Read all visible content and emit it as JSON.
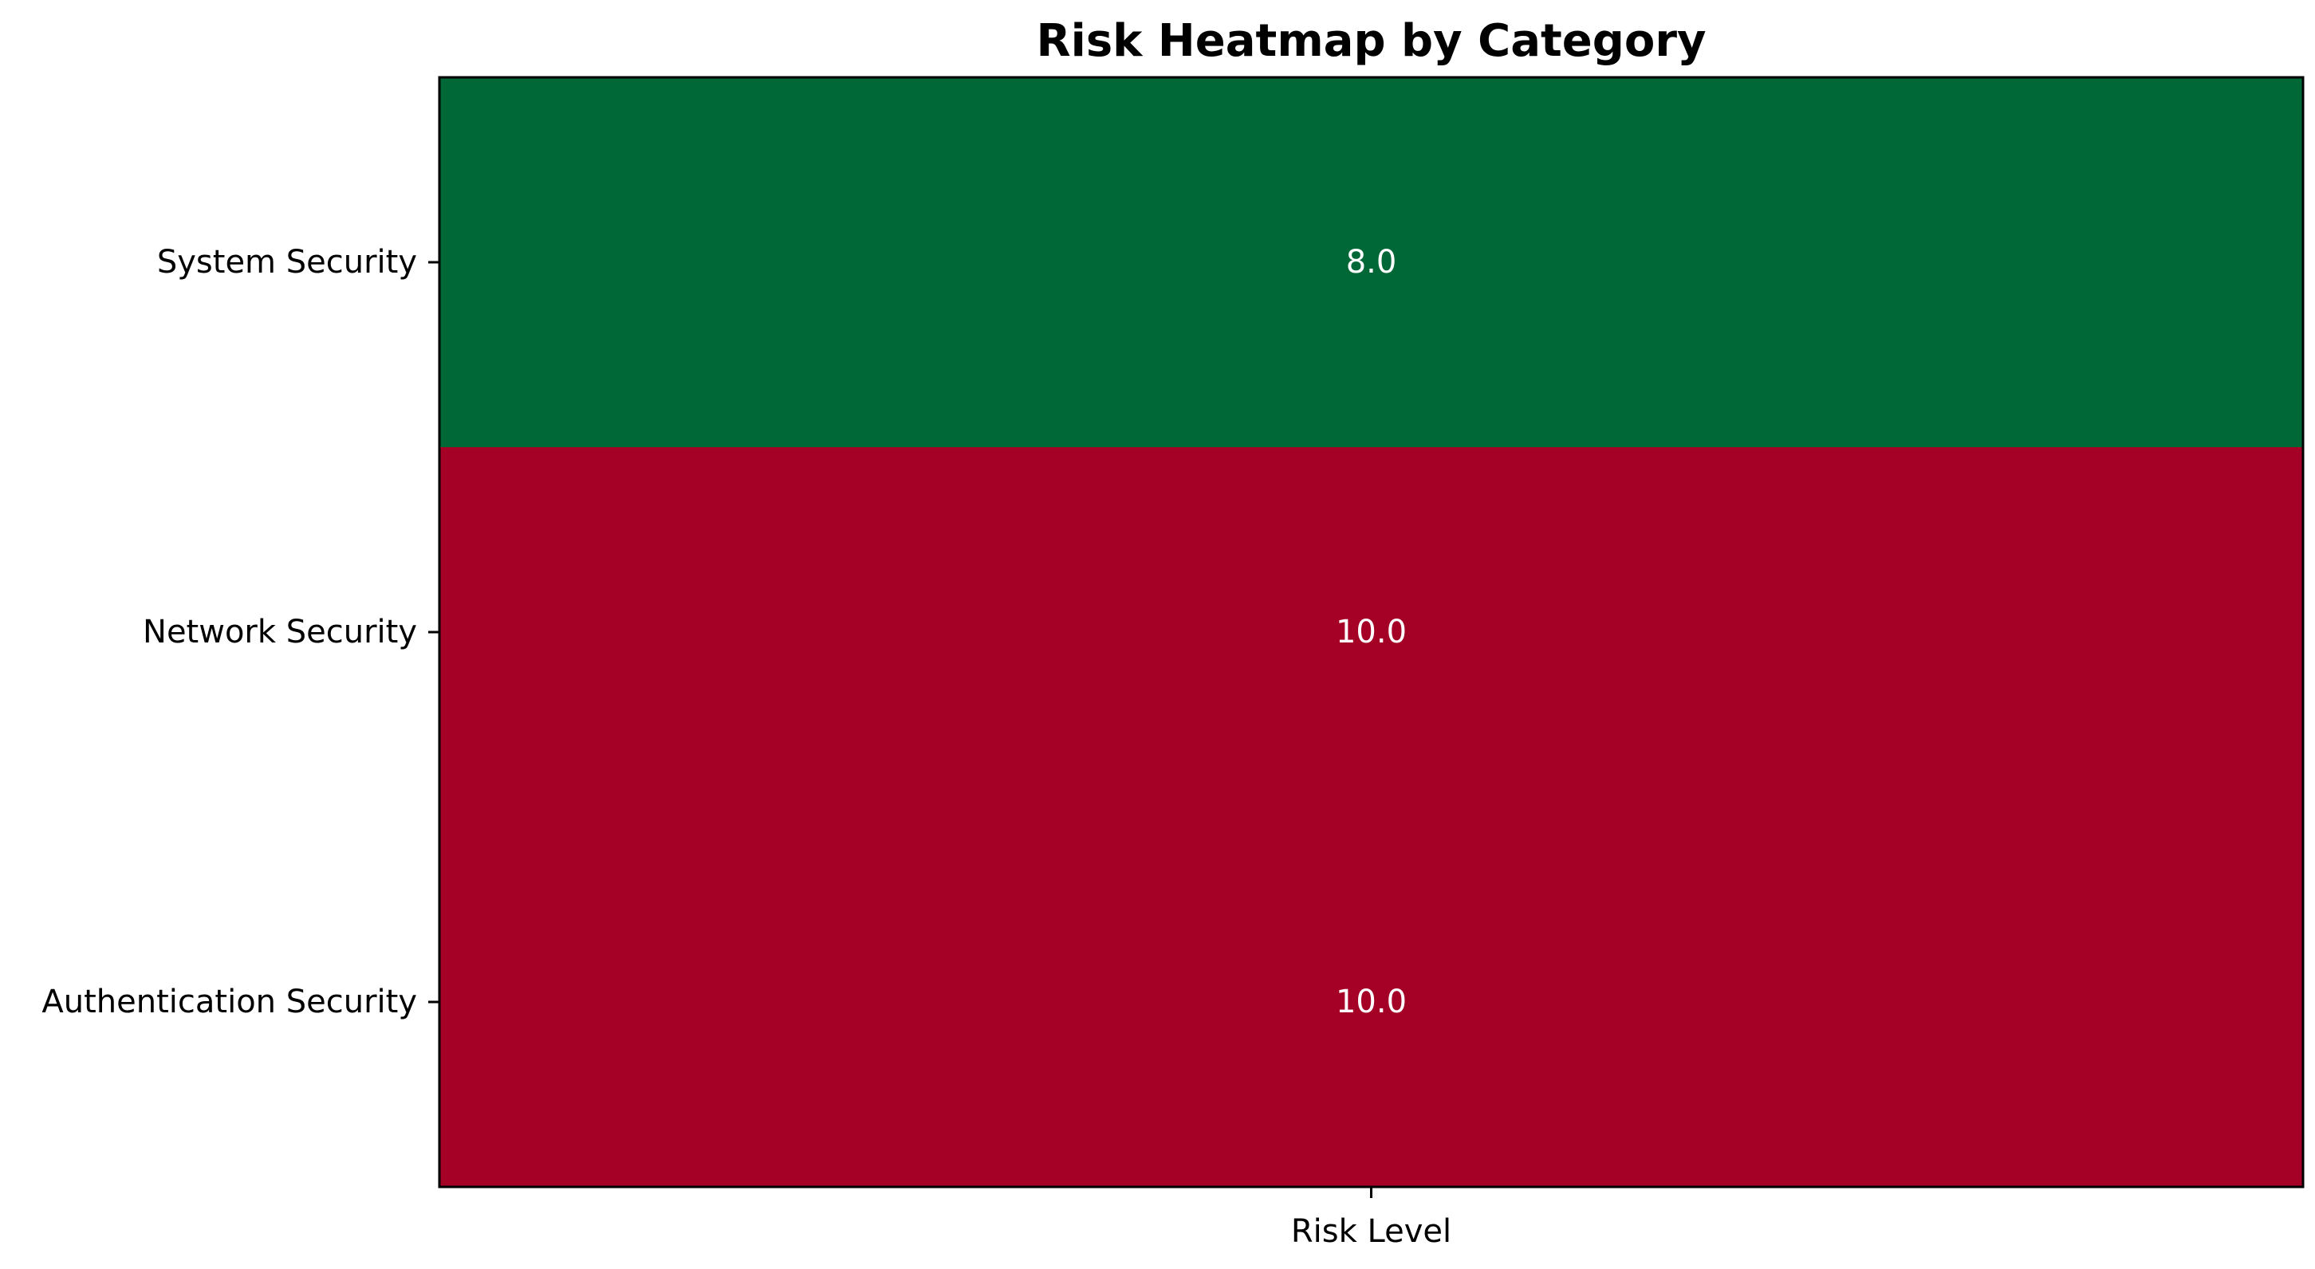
{
  "chart_data": {
    "type": "heatmap",
    "title": "Risk Heatmap by Category",
    "xlabel": "",
    "ylabel": "",
    "x_categories": [
      "Risk Level"
    ],
    "y_categories": [
      "System Security",
      "Network Security",
      "Authentication Security"
    ],
    "values": [
      [
        8.0
      ],
      [
        10.0
      ],
      [
        10.0
      ]
    ],
    "value_labels": [
      [
        "8.0"
      ],
      [
        "10.0"
      ],
      [
        "10.0"
      ]
    ],
    "colormap": "RdYlGn_r",
    "vmin": 8.0,
    "vmax": 10.0,
    "colors": {
      "low": "#006837",
      "high": "#a50026",
      "label_text": "#ffffff"
    },
    "colorbar": false
  }
}
